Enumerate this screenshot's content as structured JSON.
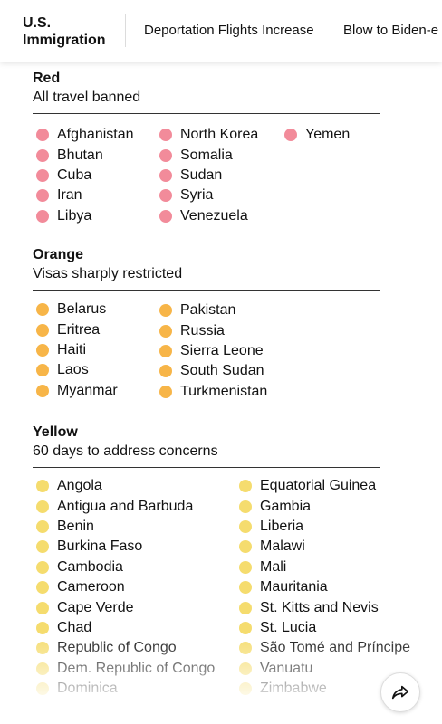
{
  "header": {
    "brand_line1": "U.S.",
    "brand_line2": "Immigration",
    "links": [
      "Deportation Flights Increase",
      "Blow to Biden-e"
    ]
  },
  "colors": {
    "red": "#f28b9a",
    "orange": "#f7b548",
    "yellow": "#f5dc6e"
  },
  "sections": {
    "red": {
      "title": "Red",
      "subtitle": "All travel banned",
      "columns": [
        [
          "Afghanistan",
          "Bhutan",
          "Cuba",
          "Iran",
          "Libya"
        ],
        [
          "North Korea",
          "Somalia",
          "Sudan",
          "Syria",
          "Venezuela"
        ],
        [
          "Yemen"
        ]
      ]
    },
    "orange": {
      "title": "Orange",
      "subtitle": "Visas sharply restricted",
      "columns": [
        [
          "Belarus",
          "Eritrea",
          "Haiti",
          "Laos",
          "Myanmar"
        ],
        [
          "Pakistan",
          "Russia",
          "Sierra Leone",
          "South Sudan",
          "Turkmenistan"
        ]
      ]
    },
    "yellow": {
      "title": "Yellow",
      "subtitle": "60 days to address concerns",
      "columns": [
        [
          "Angola",
          "Antigua and Barbuda",
          "Benin",
          "Burkina Faso",
          "Cambodia",
          "Cameroon",
          "Cape Verde",
          "Chad",
          "Republic of Congo",
          "Dem. Republic of Congo",
          "Dominica"
        ],
        [
          "Equatorial Guinea",
          "Gambia",
          "Liberia",
          "Malawi",
          "Mali",
          "Mauritania",
          "St. Kitts and Nevis",
          "St. Lucia",
          "São Tomé and Príncipe",
          "Vanuatu",
          "Zimbabwe"
        ]
      ]
    }
  },
  "share_icon": "share-arrow-icon"
}
